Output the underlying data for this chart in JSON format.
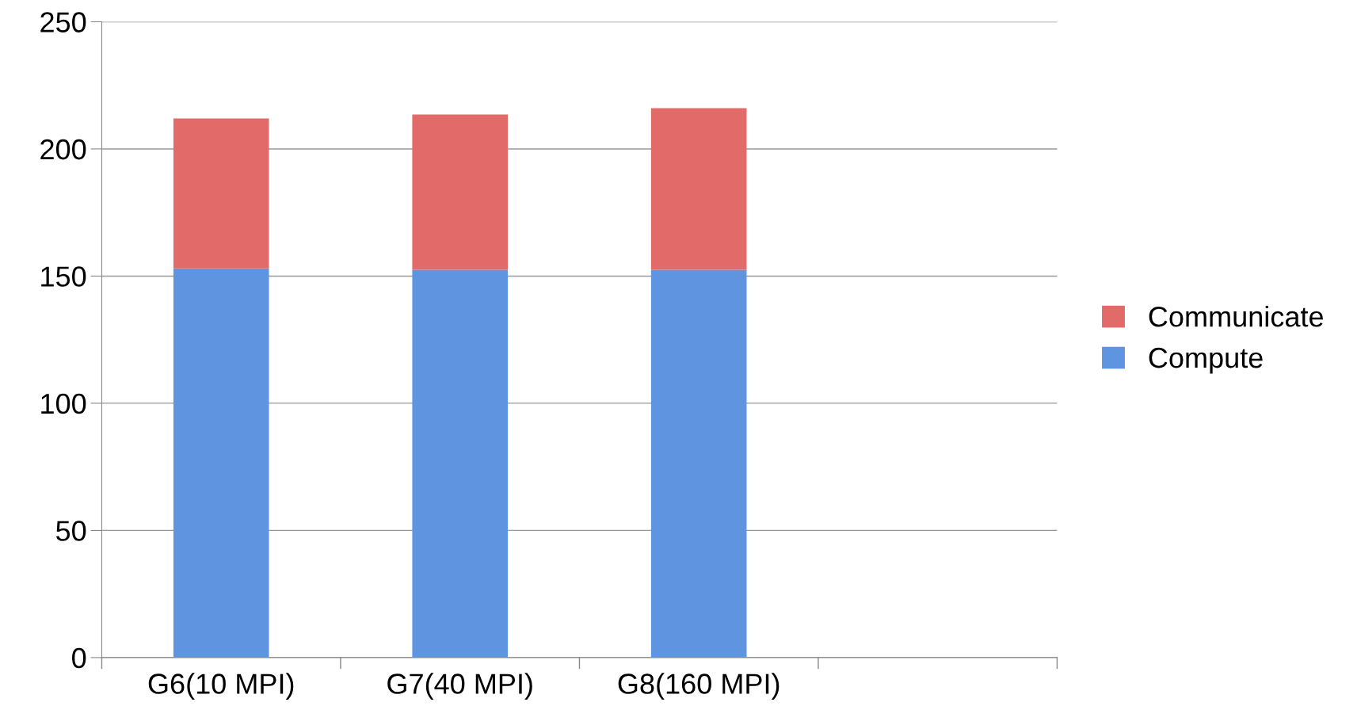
{
  "chart_data": {
    "type": "bar",
    "stacked": true,
    "categories": [
      "G6(10 MPI)",
      "G7(40 MPI)",
      "G8(160 MPI)",
      null
    ],
    "series": [
      {
        "name": "Compute",
        "color": "#5f95e0",
        "values": [
          153,
          152.5,
          152.5,
          null
        ]
      },
      {
        "name": "Communicate",
        "color": "#e26a68",
        "values": [
          59,
          61,
          63.5,
          null
        ]
      }
    ],
    "ylim": [
      0,
      250
    ],
    "yticks": [
      0,
      50,
      100,
      150,
      200,
      250
    ],
    "grid": "y",
    "legend": "right"
  }
}
